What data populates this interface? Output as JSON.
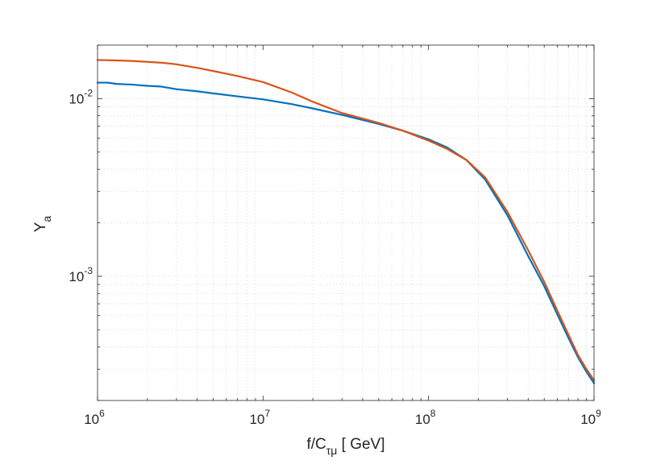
{
  "chart_data": {
    "type": "line",
    "x_scale": "log",
    "y_scale": "log",
    "xlim": [
      1000000,
      1000000000
    ],
    "ylim": [
      0.0002,
      0.02
    ],
    "grid": true,
    "xlabel": {
      "main": "f/C",
      "sub": "τμ",
      "unit": " [ GeV]"
    },
    "ylabel": {
      "main": "Y",
      "sub": "a"
    },
    "x_ticks": [
      {
        "value": 1000000,
        "base": "10",
        "exp": "6"
      },
      {
        "value": 10000000,
        "base": "10",
        "exp": "7"
      },
      {
        "value": 100000000,
        "base": "10",
        "exp": "8"
      },
      {
        "value": 1000000000,
        "base": "10",
        "exp": "9"
      }
    ],
    "y_ticks": [
      {
        "value": 0.001,
        "base": "10",
        "exp": "-3"
      },
      {
        "value": 0.01,
        "base": "10",
        "exp": "-2"
      }
    ],
    "series": [
      {
        "color": "#0072BD",
        "x": [
          1000000,
          1150000,
          1300000,
          1600000,
          2000000,
          2400000,
          3000000,
          4000000,
          5000000,
          7000000,
          10000000,
          15000000,
          20000000,
          30000000,
          50000000,
          70000000,
          100000000,
          130000000,
          170000000,
          220000000,
          300000000,
          400000000,
          500000000,
          600000000,
          700000000,
          800000000,
          900000000,
          1000000000
        ],
        "y": [
          0.0123,
          0.0123,
          0.0121,
          0.012,
          0.0118,
          0.0117,
          0.0113,
          0.011,
          0.0107,
          0.0103,
          0.0099,
          0.0093,
          0.0088,
          0.0081,
          0.0072,
          0.0066,
          0.0059,
          0.0053,
          0.0045,
          0.0035,
          0.0022,
          0.0013,
          0.00088,
          0.00061,
          0.00045,
          0.00035,
          0.00029,
          0.00025
        ]
      },
      {
        "color": "#D95319",
        "x": [
          1000000,
          1300000,
          1600000,
          2000000,
          2500000,
          3000000,
          4000000,
          5000000,
          7000000,
          10000000,
          15000000,
          20000000,
          30000000,
          50000000,
          70000000,
          100000000,
          130000000,
          170000000,
          220000000,
          300000000,
          400000000,
          500000000,
          600000000,
          700000000,
          800000000,
          900000000,
          1000000000
        ],
        "y": [
          0.0165,
          0.0164,
          0.0163,
          0.0161,
          0.0159,
          0.0156,
          0.0149,
          0.0143,
          0.0134,
          0.0124,
          0.0108,
          0.0096,
          0.0083,
          0.0073,
          0.0066,
          0.0058,
          0.0052,
          0.0045,
          0.0036,
          0.0023,
          0.0014,
          0.00093,
          0.00064,
          0.00047,
          0.00036,
          0.0003,
          0.00026
        ]
      }
    ]
  }
}
